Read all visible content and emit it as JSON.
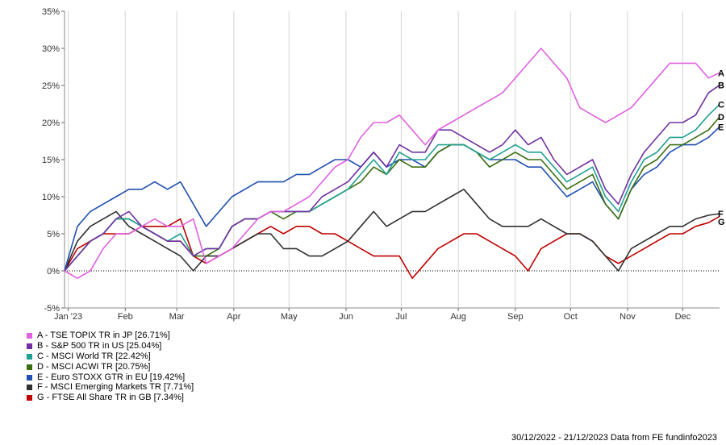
{
  "chart_data": {
    "type": "line",
    "y_unit": "%",
    "ylim": [
      -5,
      35
    ],
    "y_ticks": [
      "35%",
      "30%",
      "25%",
      "20%",
      "15%",
      "10%",
      "5%",
      "0%",
      "-5%"
    ],
    "y_tick_values": [
      35,
      30,
      25,
      20,
      15,
      10,
      5,
      0,
      -5
    ],
    "x_range": [
      "2022-12-30",
      "2023-12-21"
    ],
    "x_ticks": [
      {
        "label": "Jan '23",
        "date": "2023-01-01"
      },
      {
        "label": "Feb",
        "date": "2023-02-01"
      },
      {
        "label": "Mar",
        "date": "2023-03-01"
      },
      {
        "label": "Apr",
        "date": "2023-04-01"
      },
      {
        "label": "May",
        "date": "2023-05-01"
      },
      {
        "label": "Jun",
        "date": "2023-06-01"
      },
      {
        "label": "Jul",
        "date": "2023-07-01"
      },
      {
        "label": "Aug",
        "date": "2023-08-01"
      },
      {
        "label": "Sep",
        "date": "2023-09-01"
      },
      {
        "label": "Oct",
        "date": "2023-10-01"
      },
      {
        "label": "Nov",
        "date": "2023-11-01"
      },
      {
        "label": "Dec",
        "date": "2023-12-01"
      }
    ],
    "grid": "vertical lines at month ticks, dotted line at 0%",
    "legend_position": "bottom-left",
    "series": [
      {
        "key": "A",
        "name": "A - TSE TOPIX TR in JP [26.71%]",
        "color": "#e060e0",
        "dates": [
          "2022-12-30",
          "2023-01-06",
          "2023-01-13",
          "2023-01-20",
          "2023-01-27",
          "2023-02-03",
          "2023-02-10",
          "2023-02-17",
          "2023-02-24",
          "2023-03-03",
          "2023-03-10",
          "2023-03-17",
          "2023-03-24",
          "2023-03-31",
          "2023-04-07",
          "2023-04-14",
          "2023-04-21",
          "2023-04-28",
          "2023-05-05",
          "2023-05-12",
          "2023-05-19",
          "2023-05-26",
          "2023-06-02",
          "2023-06-09",
          "2023-06-16",
          "2023-06-23",
          "2023-06-30",
          "2023-07-07",
          "2023-07-14",
          "2023-07-21",
          "2023-07-28",
          "2023-08-04",
          "2023-08-11",
          "2023-08-18",
          "2023-08-25",
          "2023-09-01",
          "2023-09-08",
          "2023-09-15",
          "2023-09-22",
          "2023-09-29",
          "2023-10-06",
          "2023-10-13",
          "2023-10-20",
          "2023-10-27",
          "2023-11-03",
          "2023-11-10",
          "2023-11-17",
          "2023-11-24",
          "2023-12-01",
          "2023-12-08",
          "2023-12-15",
          "2023-12-21"
        ],
        "values": [
          0,
          -1,
          0,
          3,
          5,
          5,
          6,
          7,
          6,
          6,
          7,
          1,
          2,
          3,
          5,
          7,
          8,
          8,
          9,
          10,
          12,
          14,
          15,
          18,
          20,
          20,
          21,
          19,
          17,
          19,
          20,
          21,
          22,
          23,
          24,
          26,
          28,
          30,
          28,
          26,
          22,
          21,
          20,
          21,
          22,
          24,
          26,
          28,
          28,
          28,
          26,
          26.71
        ]
      },
      {
        "key": "B",
        "name": "B - S&P 500 TR in US [25.04%]",
        "color": "#7030a0",
        "dates": [
          "2022-12-30",
          "2023-01-06",
          "2023-01-13",
          "2023-01-20",
          "2023-01-27",
          "2023-02-03",
          "2023-02-10",
          "2023-02-17",
          "2023-02-24",
          "2023-03-03",
          "2023-03-10",
          "2023-03-17",
          "2023-03-24",
          "2023-03-31",
          "2023-04-07",
          "2023-04-14",
          "2023-04-21",
          "2023-04-28",
          "2023-05-05",
          "2023-05-12",
          "2023-05-19",
          "2023-05-26",
          "2023-06-02",
          "2023-06-09",
          "2023-06-16",
          "2023-06-23",
          "2023-06-30",
          "2023-07-07",
          "2023-07-14",
          "2023-07-21",
          "2023-07-28",
          "2023-08-04",
          "2023-08-11",
          "2023-08-18",
          "2023-08-25",
          "2023-09-01",
          "2023-09-08",
          "2023-09-15",
          "2023-09-22",
          "2023-09-29",
          "2023-10-06",
          "2023-10-13",
          "2023-10-20",
          "2023-10-27",
          "2023-11-03",
          "2023-11-10",
          "2023-11-17",
          "2023-11-24",
          "2023-12-01",
          "2023-12-08",
          "2023-12-15",
          "2023-12-21"
        ],
        "values": [
          0,
          2,
          4,
          5,
          7,
          8,
          6,
          5,
          4,
          4,
          2,
          3,
          3,
          6,
          7,
          7,
          8,
          8,
          8,
          8,
          10,
          11,
          12,
          14,
          16,
          14,
          17,
          16,
          16,
          19,
          19,
          18,
          17,
          16,
          17,
          19,
          17,
          18,
          15,
          13,
          14,
          15,
          11,
          9,
          13,
          16,
          18,
          20,
          20,
          21,
          24,
          25.04
        ]
      },
      {
        "key": "C",
        "name": "C - MSCI World TR [22.42%]",
        "color": "#20a090",
        "dates": [
          "2022-12-30",
          "2023-01-06",
          "2023-01-13",
          "2023-01-20",
          "2023-01-27",
          "2023-02-03",
          "2023-02-10",
          "2023-02-17",
          "2023-02-24",
          "2023-03-03",
          "2023-03-10",
          "2023-03-17",
          "2023-03-24",
          "2023-03-31",
          "2023-04-07",
          "2023-04-14",
          "2023-04-21",
          "2023-04-28",
          "2023-05-05",
          "2023-05-12",
          "2023-05-19",
          "2023-05-26",
          "2023-06-02",
          "2023-06-09",
          "2023-06-16",
          "2023-06-23",
          "2023-06-30",
          "2023-07-07",
          "2023-07-14",
          "2023-07-21",
          "2023-07-28",
          "2023-08-04",
          "2023-08-11",
          "2023-08-18",
          "2023-08-25",
          "2023-09-01",
          "2023-09-08",
          "2023-09-15",
          "2023-09-22",
          "2023-09-29",
          "2023-10-06",
          "2023-10-13",
          "2023-10-20",
          "2023-10-27",
          "2023-11-03",
          "2023-11-10",
          "2023-11-17",
          "2023-11-24",
          "2023-12-01",
          "2023-12-08",
          "2023-12-15",
          "2023-12-21"
        ],
        "values": [
          0,
          2,
          4,
          5,
          7,
          7,
          6,
          5,
          4,
          5,
          2,
          3,
          3,
          6,
          7,
          7,
          8,
          8,
          8,
          8,
          9,
          10,
          11,
          13,
          15,
          13,
          16,
          15,
          15,
          17,
          17,
          17,
          16,
          15,
          16,
          17,
          16,
          16,
          14,
          12,
          13,
          14,
          10,
          8,
          12,
          15,
          16,
          18,
          18,
          19,
          21,
          22.42
        ]
      },
      {
        "key": "D",
        "name": "D - MSCI ACWI TR [20.75%]",
        "color": "#3a6e10",
        "dates": [
          "2022-12-30",
          "2023-01-06",
          "2023-01-13",
          "2023-01-20",
          "2023-01-27",
          "2023-02-03",
          "2023-02-10",
          "2023-02-17",
          "2023-02-24",
          "2023-03-03",
          "2023-03-10",
          "2023-03-17",
          "2023-03-24",
          "2023-03-31",
          "2023-04-07",
          "2023-04-14",
          "2023-04-21",
          "2023-04-28",
          "2023-05-05",
          "2023-05-12",
          "2023-05-19",
          "2023-05-26",
          "2023-06-02",
          "2023-06-09",
          "2023-06-16",
          "2023-06-23",
          "2023-06-30",
          "2023-07-07",
          "2023-07-14",
          "2023-07-21",
          "2023-07-28",
          "2023-08-04",
          "2023-08-11",
          "2023-08-18",
          "2023-08-25",
          "2023-09-01",
          "2023-09-08",
          "2023-09-15",
          "2023-09-22",
          "2023-09-29",
          "2023-10-06",
          "2023-10-13",
          "2023-10-20",
          "2023-10-27",
          "2023-11-03",
          "2023-11-10",
          "2023-11-17",
          "2023-11-24",
          "2023-12-01",
          "2023-12-08",
          "2023-12-15",
          "2023-12-21"
        ],
        "values": [
          0,
          2,
          4,
          5,
          7,
          7,
          6,
          5,
          4,
          4,
          2,
          2,
          3,
          6,
          7,
          7,
          8,
          7,
          8,
          8,
          9,
          10,
          11,
          12,
          14,
          13,
          15,
          14,
          14,
          16,
          17,
          17,
          16,
          14,
          15,
          16,
          15,
          15,
          13,
          11,
          12,
          13,
          9,
          7,
          11,
          14,
          15,
          17,
          17,
          18,
          19,
          20.75
        ]
      },
      {
        "key": "E",
        "name": "E - Euro STOXX GTR in EU [19.42%]",
        "color": "#2050b0",
        "dates": [
          "2022-12-30",
          "2023-01-06",
          "2023-01-13",
          "2023-01-20",
          "2023-01-27",
          "2023-02-03",
          "2023-02-10",
          "2023-02-17",
          "2023-02-24",
          "2023-03-03",
          "2023-03-10",
          "2023-03-17",
          "2023-03-24",
          "2023-03-31",
          "2023-04-07",
          "2023-04-14",
          "2023-04-21",
          "2023-04-28",
          "2023-05-05",
          "2023-05-12",
          "2023-05-19",
          "2023-05-26",
          "2023-06-02",
          "2023-06-09",
          "2023-06-16",
          "2023-06-23",
          "2023-06-30",
          "2023-07-07",
          "2023-07-14",
          "2023-07-21",
          "2023-07-28",
          "2023-08-04",
          "2023-08-11",
          "2023-08-18",
          "2023-08-25",
          "2023-09-01",
          "2023-09-08",
          "2023-09-15",
          "2023-09-22",
          "2023-09-29",
          "2023-10-06",
          "2023-10-13",
          "2023-10-20",
          "2023-10-27",
          "2023-11-03",
          "2023-11-10",
          "2023-11-17",
          "2023-11-24",
          "2023-12-01",
          "2023-12-08",
          "2023-12-15",
          "2023-12-21"
        ],
        "values": [
          0,
          6,
          8,
          9,
          10,
          11,
          11,
          12,
          11,
          12,
          9,
          6,
          8,
          10,
          11,
          12,
          12,
          12,
          13,
          13,
          14,
          15,
          15,
          14,
          16,
          14,
          15,
          15,
          14,
          16,
          17,
          17,
          16,
          15,
          15,
          15,
          14,
          14,
          12,
          10,
          11,
          12,
          9,
          7,
          11,
          13,
          14,
          16,
          17,
          17,
          18,
          19.42
        ]
      },
      {
        "key": "F",
        "name": "F - MSCI Emerging Markets TR [7.71%]",
        "color": "#303030",
        "dates": [
          "2022-12-30",
          "2023-01-06",
          "2023-01-13",
          "2023-01-20",
          "2023-01-27",
          "2023-02-03",
          "2023-02-10",
          "2023-02-17",
          "2023-02-24",
          "2023-03-03",
          "2023-03-10",
          "2023-03-17",
          "2023-03-24",
          "2023-03-31",
          "2023-04-07",
          "2023-04-14",
          "2023-04-21",
          "2023-04-28",
          "2023-05-05",
          "2023-05-12",
          "2023-05-19",
          "2023-05-26",
          "2023-06-02",
          "2023-06-09",
          "2023-06-16",
          "2023-06-23",
          "2023-06-30",
          "2023-07-07",
          "2023-07-14",
          "2023-07-21",
          "2023-07-28",
          "2023-08-04",
          "2023-08-11",
          "2023-08-18",
          "2023-08-25",
          "2023-09-01",
          "2023-09-08",
          "2023-09-15",
          "2023-09-22",
          "2023-09-29",
          "2023-10-06",
          "2023-10-13",
          "2023-10-20",
          "2023-10-27",
          "2023-11-03",
          "2023-11-10",
          "2023-11-17",
          "2023-11-24",
          "2023-12-01",
          "2023-12-08",
          "2023-12-15",
          "2023-12-21"
        ],
        "values": [
          0,
          4,
          6,
          7,
          8,
          6,
          5,
          4,
          3,
          2,
          0,
          2,
          2,
          3,
          4,
          5,
          5,
          3,
          3,
          2,
          2,
          3,
          4,
          6,
          8,
          6,
          7,
          8,
          8,
          9,
          10,
          11,
          9,
          7,
          6,
          6,
          6,
          7,
          6,
          5,
          5,
          4,
          2,
          0,
          3,
          4,
          5,
          6,
          6,
          7,
          7.5,
          7.71
        ]
      },
      {
        "key": "G",
        "name": "G - FTSE All Share TR in GB [7.34%]",
        "color": "#c00000",
        "dates": [
          "2022-12-30",
          "2023-01-06",
          "2023-01-13",
          "2023-01-20",
          "2023-01-27",
          "2023-02-03",
          "2023-02-10",
          "2023-02-17",
          "2023-02-24",
          "2023-03-03",
          "2023-03-10",
          "2023-03-17",
          "2023-03-24",
          "2023-03-31",
          "2023-04-07",
          "2023-04-14",
          "2023-04-21",
          "2023-04-28",
          "2023-05-05",
          "2023-05-12",
          "2023-05-19",
          "2023-05-26",
          "2023-06-02",
          "2023-06-09",
          "2023-06-16",
          "2023-06-23",
          "2023-06-30",
          "2023-07-07",
          "2023-07-14",
          "2023-07-21",
          "2023-07-28",
          "2023-08-04",
          "2023-08-11",
          "2023-08-18",
          "2023-08-25",
          "2023-09-01",
          "2023-09-08",
          "2023-09-15",
          "2023-09-22",
          "2023-09-29",
          "2023-10-06",
          "2023-10-13",
          "2023-10-20",
          "2023-10-27",
          "2023-11-03",
          "2023-11-10",
          "2023-11-17",
          "2023-11-24",
          "2023-12-01",
          "2023-12-08",
          "2023-12-15",
          "2023-12-21"
        ],
        "values": [
          0,
          3,
          4,
          5,
          5,
          5,
          6,
          6,
          6,
          7,
          2,
          1,
          2,
          3,
          4,
          5,
          6,
          5,
          6,
          6,
          5,
          5,
          4,
          3,
          2,
          2,
          2,
          -1,
          1,
          3,
          4,
          5,
          5,
          4,
          3,
          2,
          0,
          3,
          4,
          5,
          5,
          4,
          2,
          1,
          2,
          3,
          4,
          5,
          5,
          6,
          6.5,
          7.34
        ]
      }
    ]
  },
  "footer_note": "30/12/2022 - 21/12/2023 Data from FE fundinfo2023"
}
